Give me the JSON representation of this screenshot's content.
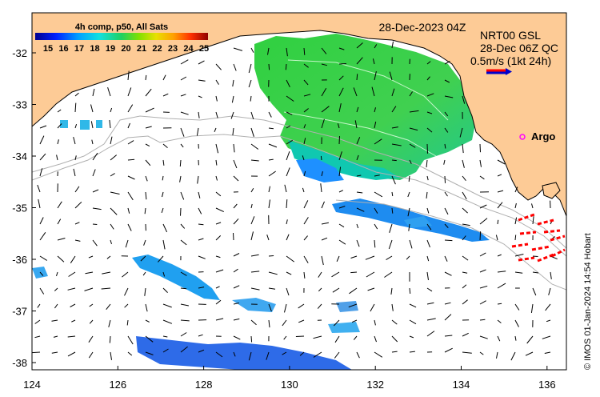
{
  "map": {
    "timestamp": "28-Dec-2023 04Z",
    "legend_title": "4h comp, p50, All Sats",
    "colorbar_ticks": [
      "15",
      "16",
      "17",
      "18",
      "19",
      "20",
      "21",
      "22",
      "23",
      "24",
      "25"
    ],
    "velocity_label_line1": "NRT00 GSL",
    "velocity_label_line2": "28-Dec 06Z QC",
    "velocity_scale_text": "0.5m/s (1kt 24h)",
    "argo_label": "Argo",
    "credit": "© IMOS 01-Jan-2024 14:54 Hobart",
    "x_ticks": [
      "124",
      "126",
      "128",
      "130",
      "132",
      "134",
      "136"
    ],
    "y_ticks": [
      "-32",
      "-33",
      "-34",
      "-35",
      "-36",
      "-37",
      "-38"
    ],
    "colors": {
      "land": "#FDCB96",
      "sea": "#FFFFFF",
      "velocity_arrow": "#FF0000",
      "velocity_arrow_blue": "#0000CC",
      "argo": "#FF00FF",
      "shelf_contour": "#B0B0B0"
    }
  }
}
